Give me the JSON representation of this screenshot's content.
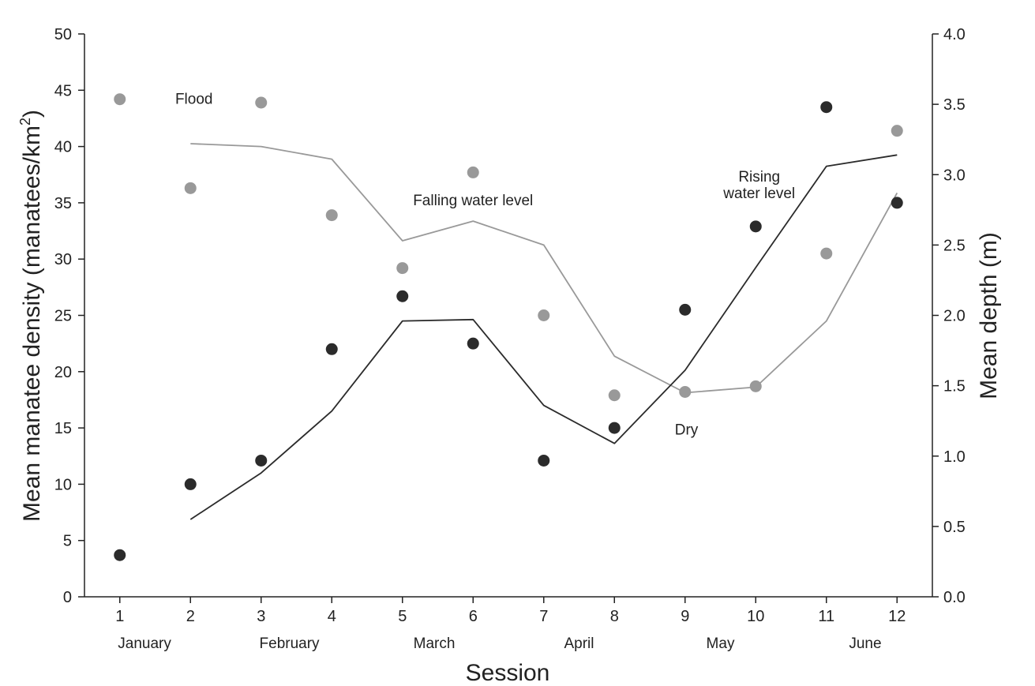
{
  "chart_data": {
    "type": "scatter",
    "xlabel": "Session",
    "ylabel": "Mean manatee density (manatees/km²)",
    "ylabel_parts": {
      "main": "Mean manatee density (manatees/km",
      "sup": "2",
      "close": ")"
    },
    "y2label": "Mean depth (m)",
    "x": [
      1,
      2,
      3,
      4,
      5,
      6,
      7,
      8,
      9,
      10,
      11,
      12
    ],
    "xlim": [
      0.5,
      12.5
    ],
    "ylim": [
      0,
      50
    ],
    "y2lim": [
      0,
      4
    ],
    "yticks": [
      0,
      5,
      10,
      15,
      20,
      25,
      30,
      35,
      40,
      45,
      50
    ],
    "y2ticks": [
      "0.0",
      "0.5",
      "1.0",
      "1.5",
      "2.0",
      "2.5",
      "3.0",
      "3.5",
      "4.0"
    ],
    "months": [
      {
        "label": "January",
        "session": 1.35
      },
      {
        "label": "February",
        "session": 3.4
      },
      {
        "label": "March",
        "session": 5.45
      },
      {
        "label": "April",
        "session": 7.5
      },
      {
        "label": "May",
        "session": 9.5
      },
      {
        "label": "June",
        "session": 11.55
      }
    ],
    "series": [
      {
        "name": "Density (gray points)",
        "kind": "points",
        "axis": "left",
        "color": "#999999",
        "x": [
          1,
          2,
          3,
          4,
          5,
          6,
          7,
          8,
          9,
          10,
          11,
          12
        ],
        "values": [
          44.2,
          36.3,
          43.9,
          33.9,
          29.2,
          37.7,
          25.0,
          17.9,
          18.2,
          18.7,
          30.5,
          41.4
        ]
      },
      {
        "name": "Density (black points)",
        "kind": "points",
        "axis": "left",
        "color": "#2b2b2b",
        "x": [
          1,
          2,
          3,
          4,
          5,
          6,
          7,
          8,
          9,
          10,
          11,
          12
        ],
        "values": [
          3.7,
          10.0,
          12.1,
          22.0,
          26.7,
          22.5,
          12.1,
          15.0,
          25.5,
          32.9,
          43.5,
          35.0
        ]
      },
      {
        "name": "Depth (gray line)",
        "kind": "line",
        "axis": "right",
        "color": "#999999",
        "x": [
          2,
          3,
          4,
          5,
          6,
          7,
          8,
          9,
          10,
          11,
          12
        ],
        "values": [
          3.22,
          3.2,
          3.11,
          2.53,
          2.67,
          2.5,
          1.71,
          1.45,
          1.49,
          1.96,
          2.87
        ]
      },
      {
        "name": "Depth (black line)",
        "kind": "line",
        "axis": "right",
        "color": "#2b2b2b",
        "x": [
          2,
          3,
          4,
          5,
          6,
          7,
          8,
          9,
          10,
          11,
          12
        ],
        "values": [
          0.55,
          0.88,
          1.32,
          1.96,
          1.97,
          1.36,
          1.09,
          1.61,
          2.34,
          3.06,
          3.14
        ]
      }
    ],
    "annotations": [
      {
        "text": "Flood",
        "session": 2.05,
        "value": 43.8
      },
      {
        "text": "Falling water level",
        "session": 6.0,
        "value": 34.8
      },
      {
        "text": "Rising",
        "session": 10.05,
        "value": 36.9
      },
      {
        "text": "water level",
        "session": 10.05,
        "value": 35.4
      },
      {
        "text": "Dry",
        "session": 9.02,
        "value": 14.4
      }
    ]
  }
}
